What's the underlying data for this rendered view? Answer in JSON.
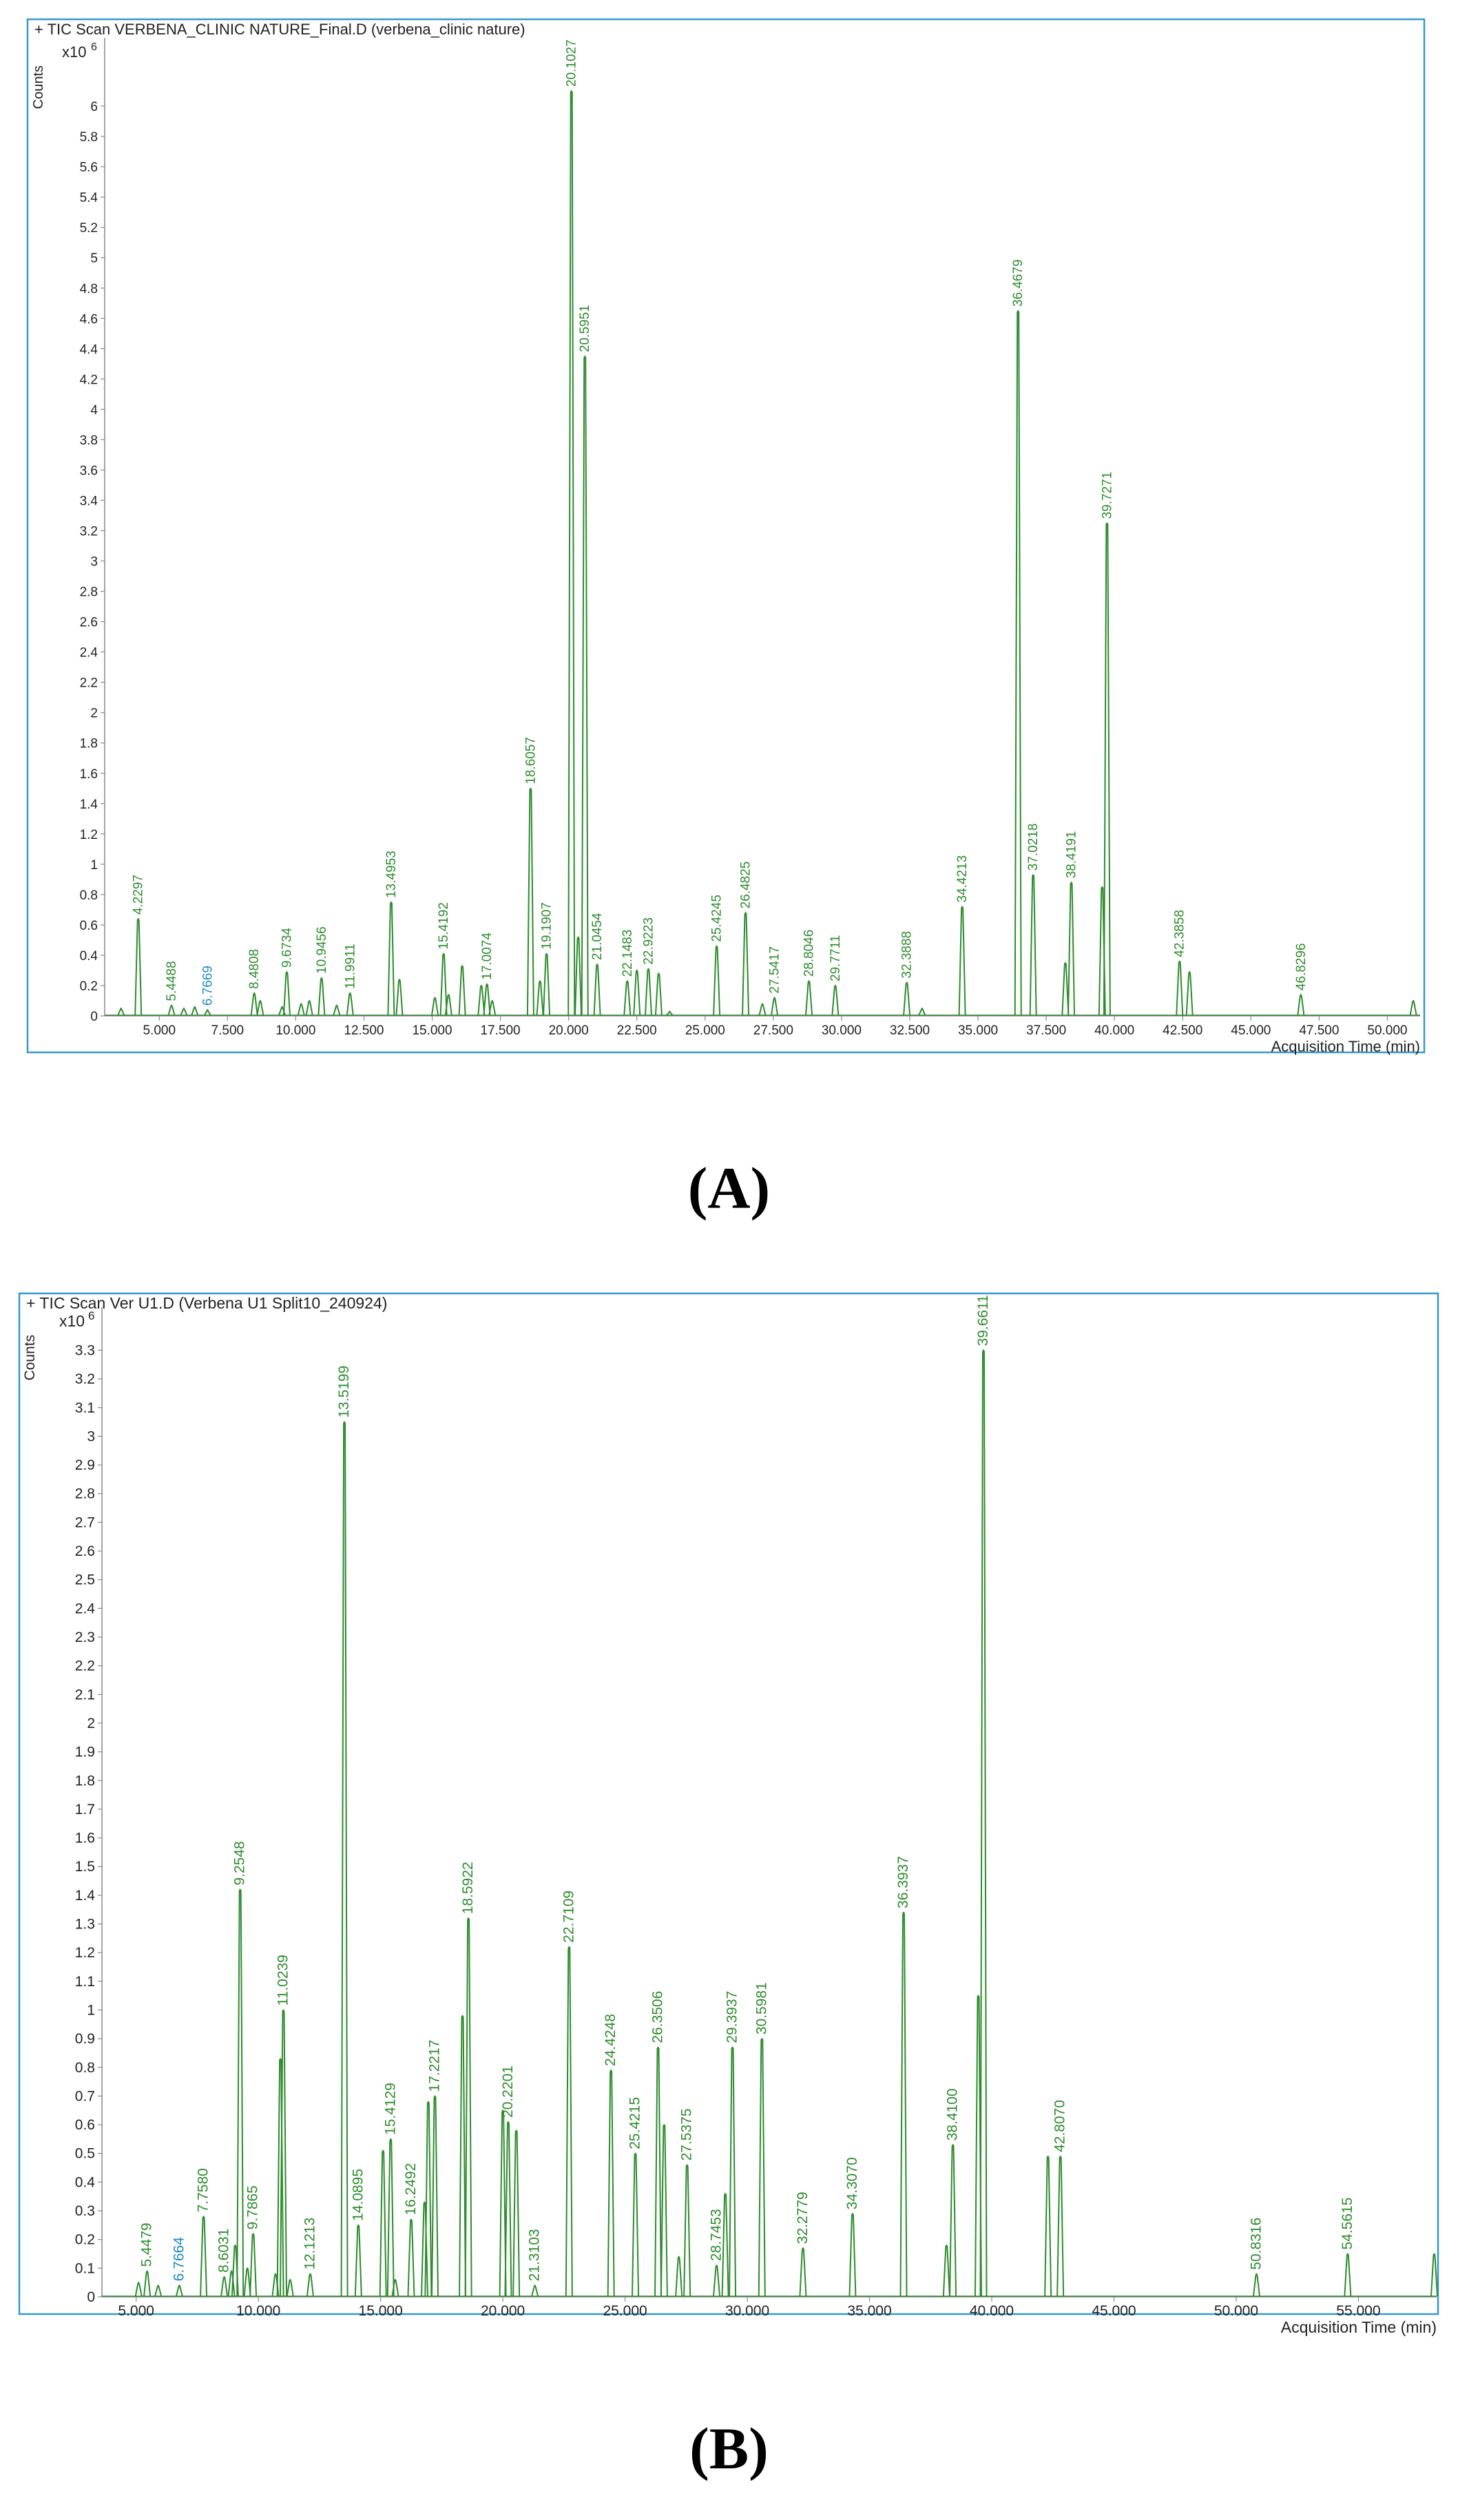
{
  "chart_data": [
    {
      "type": "line",
      "panel_label": "(A)",
      "header": "+ TIC Scan VERBENA_CLINIC NATURE_Final.D (verbena_clinic nature)",
      "ylabel": "Counts",
      "scale_label": "x10",
      "scale_exp": "6",
      "xlabel": "Acquisition Time (min)",
      "xlim": [
        3.0,
        51.2
      ],
      "ylim": [
        0,
        6.45
      ],
      "xticks": [
        "5.000",
        "7.500",
        "10.000",
        "12.500",
        "15.000",
        "17.500",
        "20.000",
        "22.500",
        "25.000",
        "27.500",
        "30.000",
        "32.500",
        "35.000",
        "37.500",
        "40.000",
        "42.500",
        "45.000",
        "47.500",
        "50.000"
      ],
      "yticks": [
        "0",
        "0.2",
        "0.4",
        "0.6",
        "0.8",
        "1",
        "1.2",
        "1.4",
        "1.6",
        "1.8",
        "2",
        "2.2",
        "2.4",
        "2.6",
        "2.8",
        "3",
        "3.2",
        "3.4",
        "3.6",
        "3.8",
        "4",
        "4.2",
        "4.4",
        "4.6",
        "4.8",
        "5",
        "5.2",
        "5.4",
        "5.6",
        "5.8",
        "6"
      ],
      "line_color": "#2e8b2e",
      "highlight_color": "#1e88c8",
      "frame_color": "#3399cc",
      "peaks": [
        {
          "x": 3.6,
          "y": 0.05
        },
        {
          "x": 4.2297,
          "y": 0.64,
          "label": "4.2297"
        },
        {
          "x": 5.4488,
          "y": 0.07,
          "label": "5.4488"
        },
        {
          "x": 5.9,
          "y": 0.05
        },
        {
          "x": 6.3,
          "y": 0.06
        },
        {
          "x": 6.7669,
          "y": 0.04,
          "label": "6.7669",
          "highlight": true
        },
        {
          "x": 8.4808,
          "y": 0.15,
          "label": "8.4808"
        },
        {
          "x": 8.7,
          "y": 0.1
        },
        {
          "x": 9.5,
          "y": 0.06
        },
        {
          "x": 9.6734,
          "y": 0.29,
          "label": "9.6734"
        },
        {
          "x": 10.2,
          "y": 0.08
        },
        {
          "x": 10.5,
          "y": 0.1
        },
        {
          "x": 10.9456,
          "y": 0.25,
          "label": "10.9456"
        },
        {
          "x": 11.5,
          "y": 0.07
        },
        {
          "x": 11.9911,
          "y": 0.15,
          "label": "11.9911"
        },
        {
          "x": 13.4953,
          "y": 0.75,
          "label": "13.4953"
        },
        {
          "x": 13.8,
          "y": 0.24
        },
        {
          "x": 15.1,
          "y": 0.12
        },
        {
          "x": 15.4192,
          "y": 0.41,
          "label": "15.4192"
        },
        {
          "x": 15.6,
          "y": 0.14
        },
        {
          "x": 16.1,
          "y": 0.33
        },
        {
          "x": 16.8,
          "y": 0.2
        },
        {
          "x": 17.0074,
          "y": 0.21,
          "label": "17.0074"
        },
        {
          "x": 17.2,
          "y": 0.1
        },
        {
          "x": 18.6057,
          "y": 1.5,
          "label": "18.6057"
        },
        {
          "x": 18.95,
          "y": 0.23
        },
        {
          "x": 19.1907,
          "y": 0.41,
          "label": "19.1907"
        },
        {
          "x": 20.1027,
          "y": 6.1,
          "label": "20.1027"
        },
        {
          "x": 20.35,
          "y": 0.52
        },
        {
          "x": 20.5951,
          "y": 4.35,
          "label": "20.5951"
        },
        {
          "x": 21.0454,
          "y": 0.34,
          "label": "21.0454"
        },
        {
          "x": 22.1483,
          "y": 0.23,
          "label": "22.1483"
        },
        {
          "x": 22.5,
          "y": 0.3
        },
        {
          "x": 22.9223,
          "y": 0.31,
          "label": "22.9223"
        },
        {
          "x": 23.3,
          "y": 0.28
        },
        {
          "x": 23.7,
          "y": 0.03
        },
        {
          "x": 25.4245,
          "y": 0.46,
          "label": "25.4245"
        },
        {
          "x": 26.4825,
          "y": 0.68,
          "label": "26.4825"
        },
        {
          "x": 27.1,
          "y": 0.08
        },
        {
          "x": 27.5417,
          "y": 0.12,
          "label": "27.5417"
        },
        {
          "x": 28.8046,
          "y": 0.23,
          "label": "28.8046"
        },
        {
          "x": 29.7711,
          "y": 0.2,
          "label": "29.7711"
        },
        {
          "x": 32.3888,
          "y": 0.22,
          "label": "32.3888"
        },
        {
          "x": 32.95,
          "y": 0.05
        },
        {
          "x": 34.4213,
          "y": 0.72,
          "label": "34.4213"
        },
        {
          "x": 36.4679,
          "y": 4.65,
          "label": "36.4679"
        },
        {
          "x": 37.0218,
          "y": 0.93,
          "label": "37.0218"
        },
        {
          "x": 38.2,
          "y": 0.35
        },
        {
          "x": 38.4191,
          "y": 0.88,
          "label": "38.4191"
        },
        {
          "x": 39.55,
          "y": 0.85
        },
        {
          "x": 39.7271,
          "y": 3.25,
          "label": "39.7271"
        },
        {
          "x": 42.3858,
          "y": 0.36,
          "label": "42.3858"
        },
        {
          "x": 42.75,
          "y": 0.29
        },
        {
          "x": 46.8296,
          "y": 0.14,
          "label": "46.8296"
        },
        {
          "x": 50.95,
          "y": 0.1
        }
      ]
    },
    {
      "type": "line",
      "panel_label": "(B)",
      "header": "+ TIC Scan Ver U1.D (Verbena U1 Split10_240924)",
      "ylabel": "Counts",
      "scale_label": "x10",
      "scale_exp": "6",
      "xlabel": "Acquisition Time (min)",
      "xlim": [
        3.6,
        58.2
      ],
      "ylim": [
        0,
        3.45
      ],
      "xticks": [
        "5.000",
        "10.000",
        "15.000",
        "20.000",
        "25.000",
        "30.000",
        "35.000",
        "40.000",
        "45.000",
        "50.000",
        "55.000"
      ],
      "yticks": [
        "0",
        "0.1",
        "0.2",
        "0.3",
        "0.4",
        "0.5",
        "0.6",
        "0.7",
        "0.8",
        "0.9",
        "1",
        "1.1",
        "1.2",
        "1.3",
        "1.4",
        "1.5",
        "1.6",
        "1.7",
        "1.8",
        "1.9",
        "2",
        "2.1",
        "2.2",
        "2.3",
        "2.4",
        "2.5",
        "2.6",
        "2.7",
        "2.8",
        "2.9",
        "3",
        "3.1",
        "3.2",
        "3.3"
      ],
      "line_color": "#2e8b2e",
      "highlight_color": "#1e88c8",
      "frame_color": "#3399cc",
      "peaks": [
        {
          "x": 5.1,
          "y": 0.05
        },
        {
          "x": 5.4479,
          "y": 0.09,
          "label": "5.4479"
        },
        {
          "x": 5.9,
          "y": 0.04
        },
        {
          "x": 6.7664,
          "y": 0.04,
          "label": "6.7664",
          "highlight": true
        },
        {
          "x": 7.758,
          "y": 0.28,
          "label": "7.7580"
        },
        {
          "x": 8.6031,
          "y": 0.07,
          "label": "8.6031"
        },
        {
          "x": 8.9,
          "y": 0.09
        },
        {
          "x": 9.05,
          "y": 0.18
        },
        {
          "x": 9.2548,
          "y": 1.42,
          "label": "9.2548"
        },
        {
          "x": 9.55,
          "y": 0.1
        },
        {
          "x": 9.7865,
          "y": 0.22,
          "label": "9.7865"
        },
        {
          "x": 10.7,
          "y": 0.08
        },
        {
          "x": 10.9,
          "y": 0.83
        },
        {
          "x": 11.0239,
          "y": 1.0,
          "label": "11.0239"
        },
        {
          "x": 11.3,
          "y": 0.06
        },
        {
          "x": 12.1213,
          "y": 0.08,
          "label": "12.1213"
        },
        {
          "x": 13.5199,
          "y": 3.05,
          "label": "13.5199"
        },
        {
          "x": 14.0895,
          "y": 0.25,
          "label": "14.0895"
        },
        {
          "x": 15.1,
          "y": 0.51
        },
        {
          "x": 15.4129,
          "y": 0.55,
          "label": "15.4129"
        },
        {
          "x": 15.6,
          "y": 0.06
        },
        {
          "x": 16.2492,
          "y": 0.27,
          "label": "16.2492"
        },
        {
          "x": 16.8,
          "y": 0.33
        },
        {
          "x": 16.95,
          "y": 0.68
        },
        {
          "x": 17.2217,
          "y": 0.7,
          "label": "17.2217"
        },
        {
          "x": 18.35,
          "y": 0.98
        },
        {
          "x": 18.5922,
          "y": 1.32,
          "label": "18.5922"
        },
        {
          "x": 20.0,
          "y": 0.65
        },
        {
          "x": 20.2201,
          "y": 0.61,
          "label": "20.2201"
        },
        {
          "x": 20.55,
          "y": 0.58
        },
        {
          "x": 21.3103,
          "y": 0.04,
          "label": "21.3103"
        },
        {
          "x": 22.7109,
          "y": 1.22,
          "label": "22.7109"
        },
        {
          "x": 24.4248,
          "y": 0.79,
          "label": "24.4248"
        },
        {
          "x": 25.4215,
          "y": 0.5,
          "label": "25.4215"
        },
        {
          "x": 26.3506,
          "y": 0.87,
          "label": "26.3506"
        },
        {
          "x": 26.6,
          "y": 0.6
        },
        {
          "x": 27.2,
          "y": 0.14
        },
        {
          "x": 27.5375,
          "y": 0.46,
          "label": "27.5375"
        },
        {
          "x": 28.7453,
          "y": 0.11,
          "label": "28.7453"
        },
        {
          "x": 29.1,
          "y": 0.36
        },
        {
          "x": 29.3937,
          "y": 0.87,
          "label": "29.3937"
        },
        {
          "x": 30.5981,
          "y": 0.9,
          "label": "30.5981"
        },
        {
          "x": 32.2779,
          "y": 0.17,
          "label": "32.2779"
        },
        {
          "x": 34.307,
          "y": 0.29,
          "label": "34.3070"
        },
        {
          "x": 36.3937,
          "y": 1.34,
          "label": "36.3937"
        },
        {
          "x": 38.15,
          "y": 0.18
        },
        {
          "x": 38.41,
          "y": 0.53,
          "label": "38.4100"
        },
        {
          "x": 39.45,
          "y": 1.05
        },
        {
          "x": 39.6611,
          "y": 3.3,
          "label": "39.6611"
        },
        {
          "x": 42.3,
          "y": 0.49
        },
        {
          "x": 42.807,
          "y": 0.49,
          "label": "42.8070"
        },
        {
          "x": 50.8316,
          "y": 0.08,
          "label": "50.8316"
        },
        {
          "x": 54.5615,
          "y": 0.15,
          "label": "54.5615"
        },
        {
          "x": 58.1,
          "y": 0.15
        }
      ]
    }
  ]
}
